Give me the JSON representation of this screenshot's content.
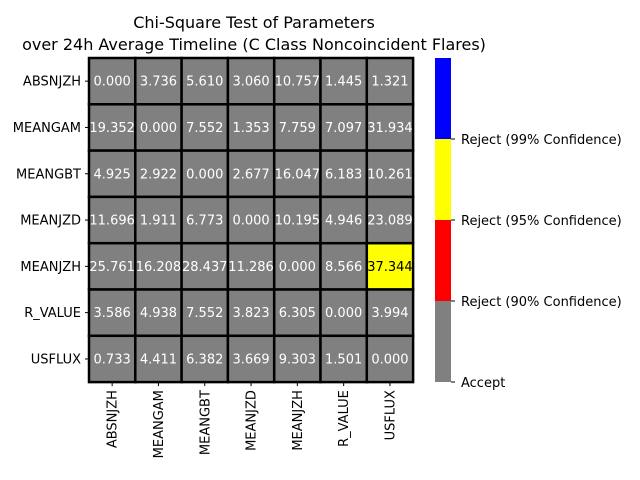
{
  "chart_data": {
    "type": "heatmap",
    "title_line1": "Chi-Square Test of Parameters",
    "title_line2": "over 24h Average Timeline (C Class Noncoincident Flares)",
    "rows": [
      "ABSNJZH",
      "MEANGAM",
      "MEANGBT",
      "MEANJZD",
      "MEANJZH",
      "R_VALUE",
      "USFLUX"
    ],
    "cols": [
      "ABSNJZH",
      "MEANGAM",
      "MEANGBT",
      "MEANJZD",
      "MEANJZH",
      "R_VALUE",
      "USFLUX"
    ],
    "values": [
      [
        0.0,
        3.736,
        5.61,
        3.06,
        10.757,
        1.445,
        1.321
      ],
      [
        19.352,
        0.0,
        7.552,
        1.353,
        7.759,
        7.097,
        31.934
      ],
      [
        4.925,
        2.922,
        0.0,
        2.677,
        16.047,
        6.183,
        10.261
      ],
      [
        11.696,
        1.911,
        6.773,
        0.0,
        10.195,
        4.946,
        23.089
      ],
      [
        25.761,
        16.208,
        28.437,
        11.286,
        0.0,
        8.566,
        37.344
      ],
      [
        3.586,
        4.938,
        7.552,
        3.823,
        6.305,
        0.0,
        3.994
      ],
      [
        0.733,
        4.411,
        6.382,
        3.669,
        9.303,
        1.501,
        0.0
      ]
    ],
    "cell_labels": [
      [
        "0.000",
        "3.736",
        "5.610",
        "3.060",
        "10.757",
        "1.445",
        "1.321"
      ],
      [
        "19.352",
        "0.000",
        "7.552",
        "1.353",
        "7.759",
        "7.097",
        "31.934"
      ],
      [
        "4.925",
        "2.922",
        "0.000",
        "2.677",
        "16.047",
        "6.183",
        "10.261"
      ],
      [
        "11.696",
        "1.911",
        "6.773",
        "0.000",
        "10.195",
        "4.946",
        "23.089"
      ],
      [
        "25.761",
        "16.208",
        "28.437",
        "11.286",
        "0.000",
        "8.566",
        "37.344"
      ],
      [
        "3.586",
        "4.938",
        "7.552",
        "3.823",
        "6.305",
        "0.000",
        "3.994"
      ],
      [
        "0.733",
        "4.411",
        "6.382",
        "3.669",
        "9.303",
        "1.501",
        "0.000"
      ]
    ],
    "categories_matrix": [
      [
        0,
        0,
        0,
        0,
        0,
        0,
        0
      ],
      [
        0,
        0,
        0,
        0,
        0,
        0,
        0
      ],
      [
        0,
        0,
        0,
        0,
        0,
        0,
        0
      ],
      [
        0,
        0,
        0,
        0,
        0,
        0,
        0
      ],
      [
        0,
        0,
        0,
        0,
        0,
        0,
        2
      ],
      [
        0,
        0,
        0,
        0,
        0,
        0,
        0
      ],
      [
        0,
        0,
        0,
        0,
        0,
        0,
        0
      ]
    ],
    "colorbar": {
      "colors": [
        "#808080",
        "#ff0000",
        "#ffff00",
        "#0000ff"
      ],
      "labels": [
        "Accept",
        "Reject (90% Confidence)",
        "Reject (95% Confidence)",
        "Reject (99% Confidence)"
      ]
    },
    "text_colors": [
      "#ffffff",
      "#ffffff",
      "#000000",
      "#ffffff"
    ],
    "legend_placement": "right"
  }
}
